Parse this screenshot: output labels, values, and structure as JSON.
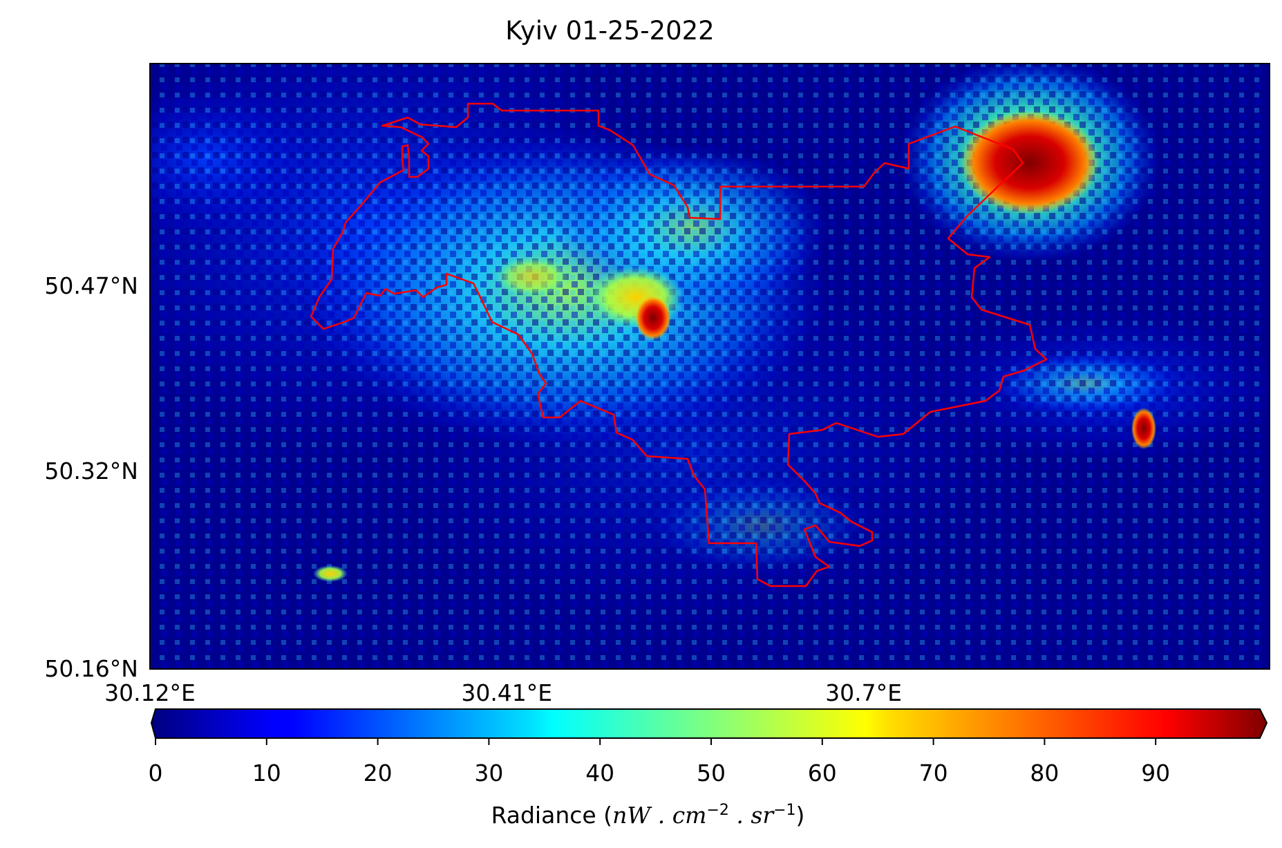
{
  "title": "Kyiv 01-25-2022",
  "map": {
    "lon_range": [
      30.12,
      31.03
    ],
    "lat_range": [
      50.16,
      50.65
    ],
    "x_ticks": [
      {
        "value": 30.12,
        "label": "30.12°E"
      },
      {
        "value": 30.41,
        "label": "30.41°E"
      },
      {
        "value": 30.7,
        "label": "30.7°E"
      }
    ],
    "y_ticks": [
      {
        "value": 50.47,
        "label": "50.47°N"
      },
      {
        "value": 50.32,
        "label": "50.32°N"
      },
      {
        "value": 50.16,
        "label": "50.16°N"
      }
    ],
    "boundary_color": "#ff0000",
    "background_color": "#00008f"
  },
  "colorbar": {
    "label_prefix": "Radiance (",
    "label_math": "nW . cm",
    "label_exp1": "−2",
    "label_mid": " . sr",
    "label_exp2": "−1",
    "label_suffix": ")",
    "range": [
      0,
      100
    ],
    "ticks": [
      0,
      10,
      20,
      30,
      40,
      50,
      60,
      70,
      80,
      90
    ],
    "tick_labels": [
      "0",
      "10",
      "20",
      "30",
      "40",
      "50",
      "60",
      "70",
      "80",
      "90"
    ],
    "colormap": "jet",
    "extend": "both"
  },
  "chart_data": {
    "type": "heatmap",
    "title": "Kyiv 01-25-2022",
    "xlabel": "",
    "ylabel": "",
    "x_range": [
      30.12,
      31.03
    ],
    "y_range": [
      50.16,
      50.65
    ],
    "value_label": "Radiance (nW . cm−2 . sr−1)",
    "value_range": [
      0,
      100
    ],
    "hotspots": [
      {
        "lon": 30.53,
        "lat": 50.46,
        "value": 100
      },
      {
        "lon": 30.5,
        "lat": 50.47,
        "value": 75
      },
      {
        "lon": 30.85,
        "lat": 50.58,
        "value": 100
      },
      {
        "lon": 30.92,
        "lat": 50.35,
        "value": 90
      },
      {
        "lon": 30.4,
        "lat": 50.45,
        "value": 55
      },
      {
        "lon": 30.26,
        "lat": 50.23,
        "value": 50
      }
    ]
  }
}
